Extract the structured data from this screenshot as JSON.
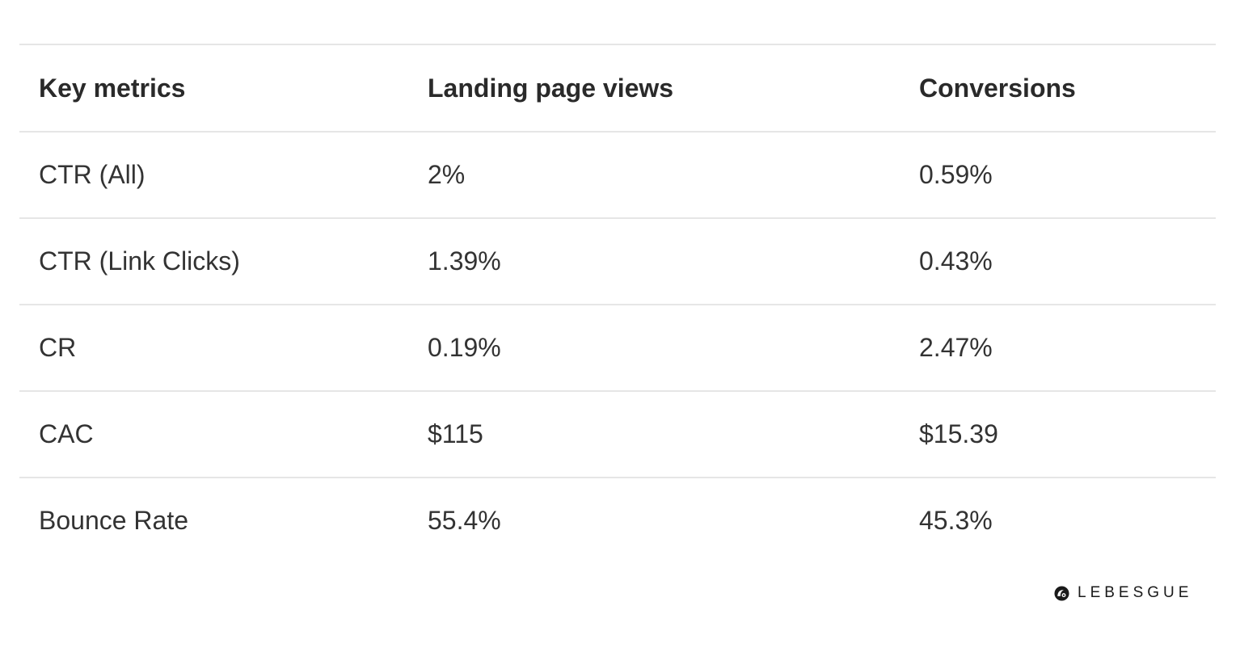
{
  "table": {
    "headers": [
      "Key metrics",
      "Landing page views",
      "Conversions"
    ],
    "rows": [
      [
        "CTR (All)",
        "2%",
        "0.59%"
      ],
      [
        "CTR (Link Clicks)",
        "1.39%",
        "0.43%"
      ],
      [
        "CR",
        "0.19%",
        "2.47%"
      ],
      [
        "CAC",
        "$115",
        "$15.39"
      ],
      [
        "Bounce Rate",
        "55.4%",
        "45.3%"
      ]
    ]
  },
  "brand": {
    "name": "LEBESGUE",
    "icon": "lebesgue-logo-icon",
    "color": "#1a1a1a"
  }
}
